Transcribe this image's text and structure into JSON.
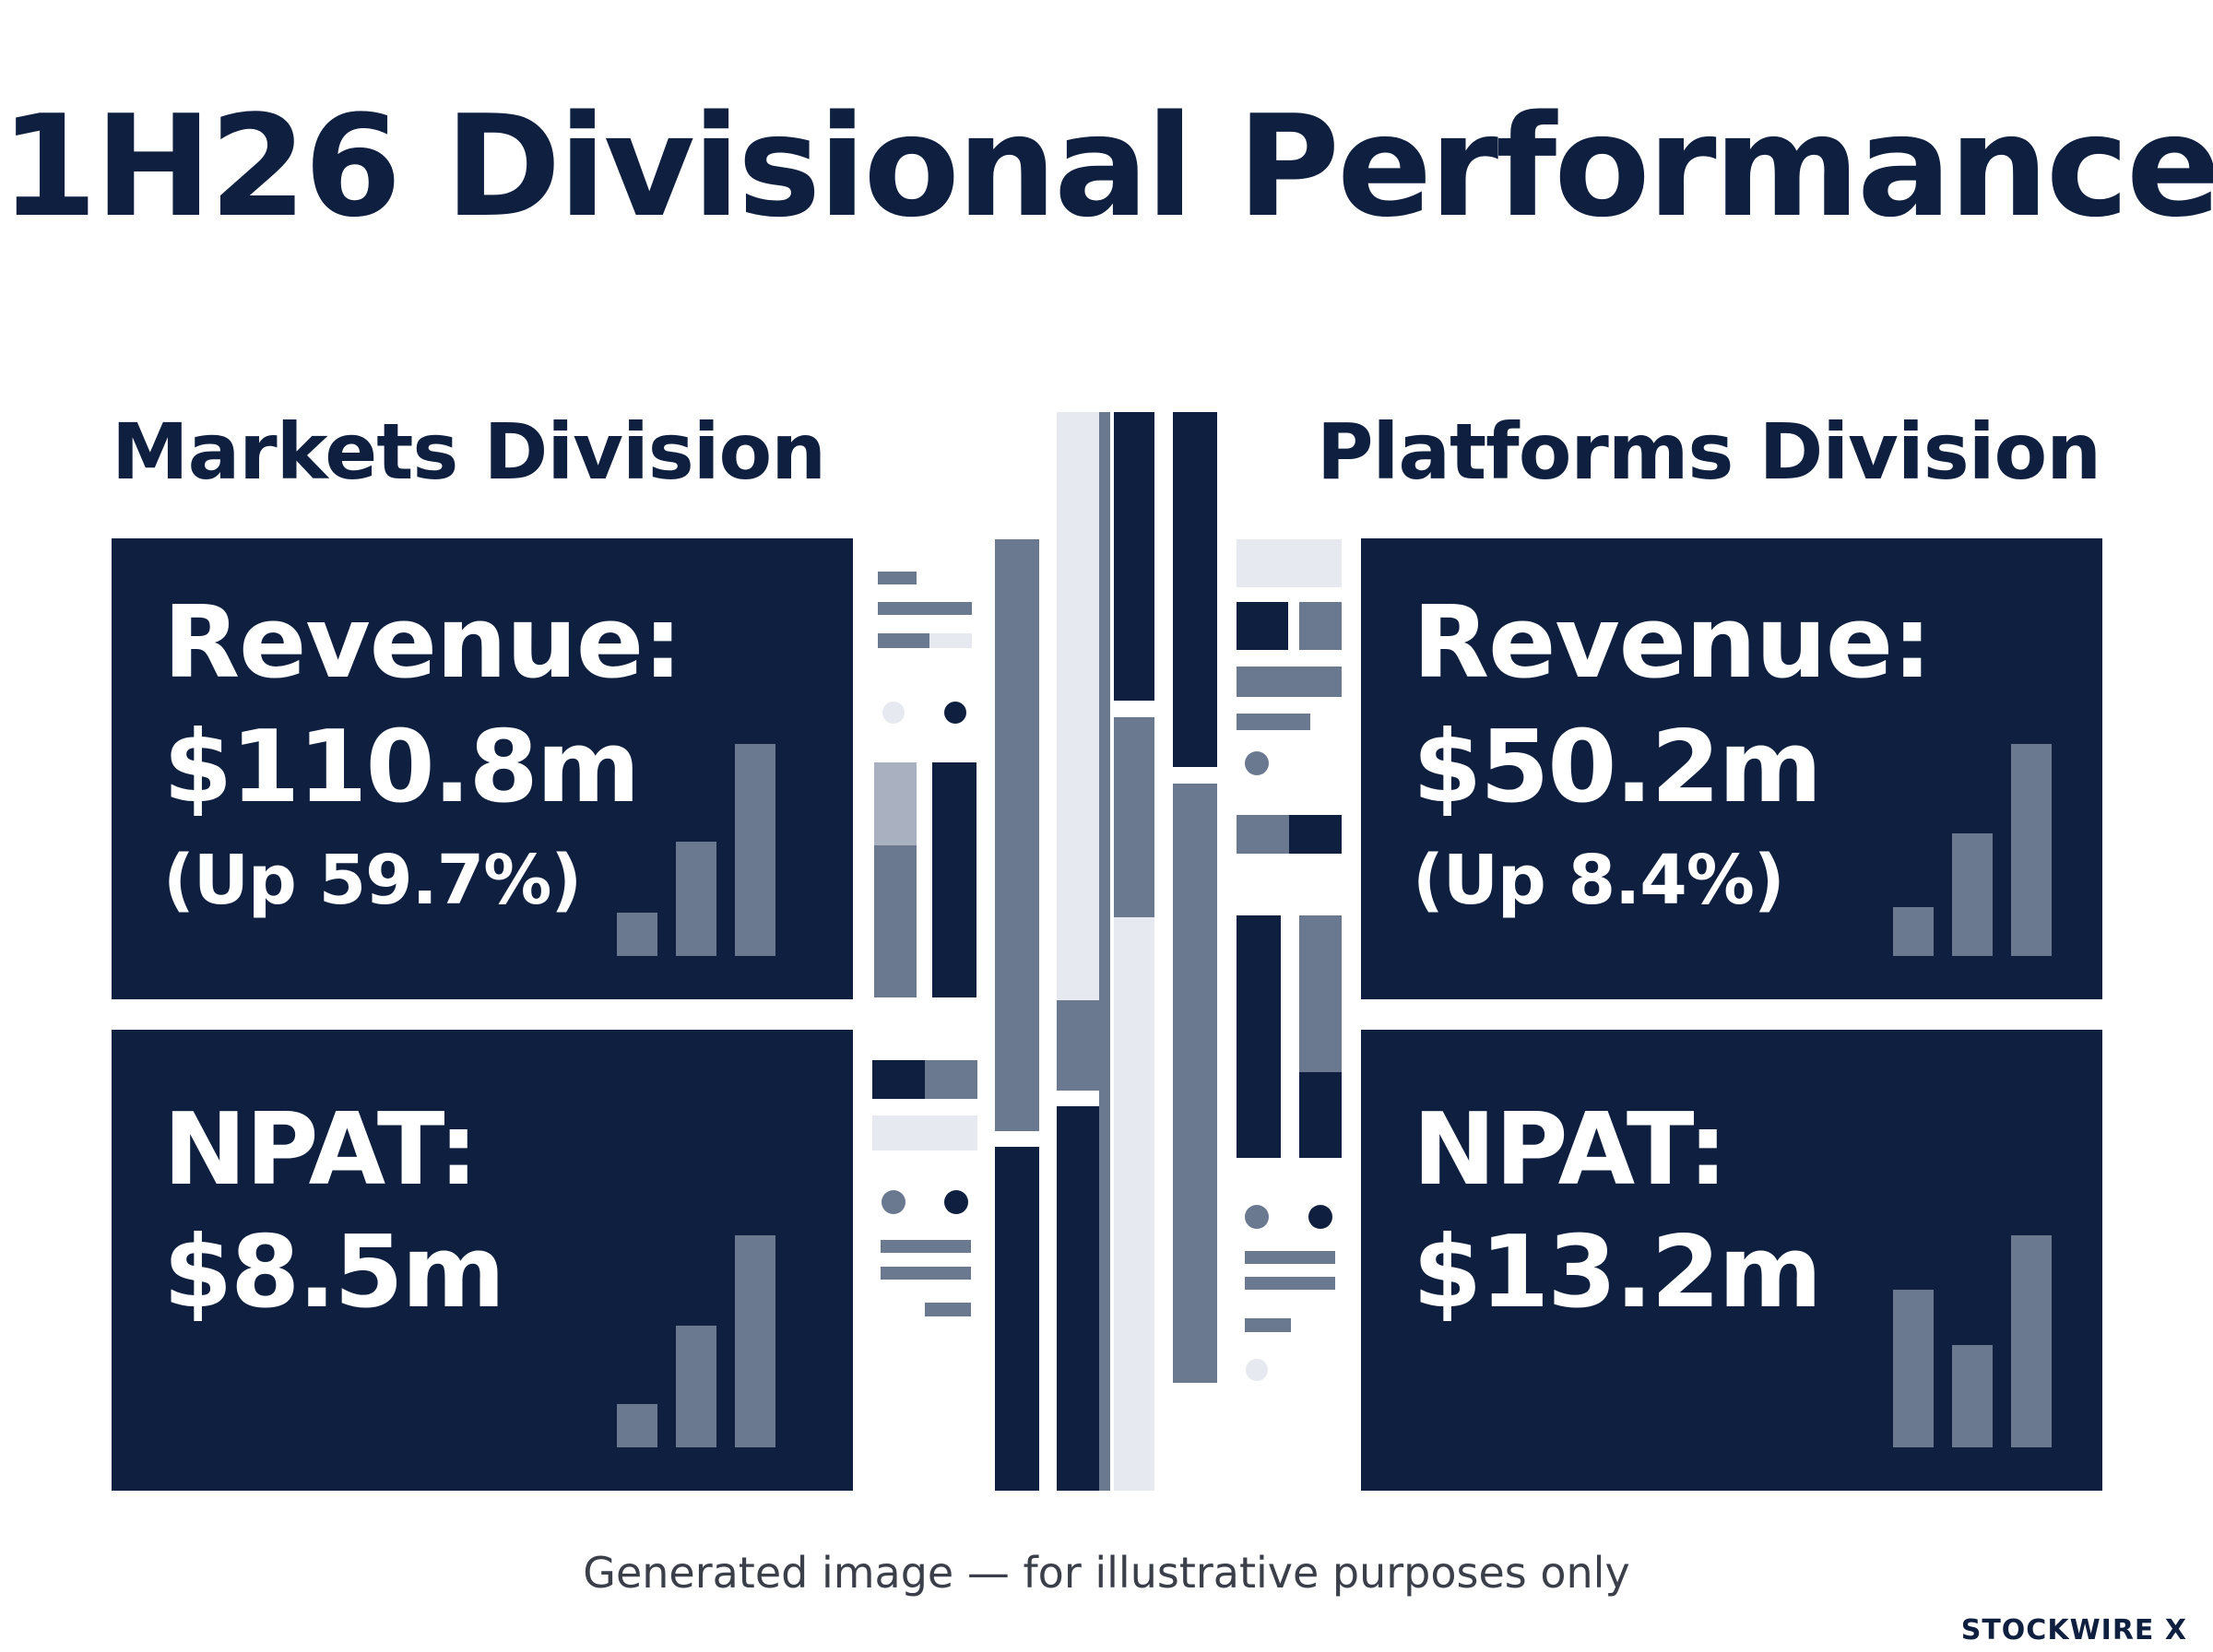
{
  "title": "1H26 Divisional Performance",
  "colors": {
    "navy": "#0e1f40",
    "slate": "#6a7890",
    "light": "#e6e9ef",
    "white": "#ffffff"
  },
  "divisions": [
    {
      "name": "Markets Division",
      "revenue": {
        "label": "Revenue:",
        "value": "$110.8m",
        "change": "(Up 59.7%)"
      },
      "npat": {
        "label": "NPAT:",
        "value": "$8.5m"
      }
    },
    {
      "name": "Platforms Division",
      "revenue": {
        "label": "Revenue:",
        "value": "$50.2m",
        "change": "(Up 8.4%)"
      },
      "npat": {
        "label": "NPAT:",
        "value": "$13.2m"
      }
    }
  ],
  "disclaimer": "Generated image — for illustrative purposes only",
  "brand": "STOCKWIRE X"
}
